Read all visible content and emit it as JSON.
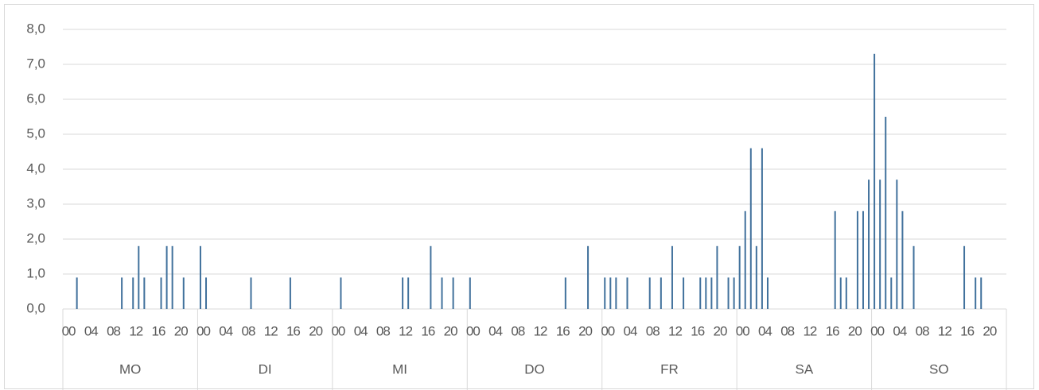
{
  "chart_data": {
    "type": "bar",
    "color": "#41719c",
    "grid": true,
    "ylim": [
      0,
      8
    ],
    "yticks": [
      {
        "value": 0,
        "label": "0,0"
      },
      {
        "value": 1,
        "label": "1,0"
      },
      {
        "value": 2,
        "label": "2,0"
      },
      {
        "value": 3,
        "label": "3,0"
      },
      {
        "value": 4,
        "label": "4,0"
      },
      {
        "value": 5,
        "label": "5,0"
      },
      {
        "value": 6,
        "label": "6,0"
      },
      {
        "value": 7,
        "label": "7,0"
      },
      {
        "value": 8,
        "label": "8,0"
      }
    ],
    "days": [
      "MO",
      "DI",
      "MI",
      "DO",
      "FR",
      "SA",
      "SO"
    ],
    "categories": [
      "00",
      null,
      null,
      null,
      "04",
      null,
      null,
      null,
      "08",
      null,
      null,
      null,
      "12",
      null,
      null,
      null,
      "16",
      null,
      null,
      null,
      "20",
      null,
      null,
      null,
      "00",
      null,
      null,
      null,
      "04",
      null,
      null,
      null,
      "08",
      null,
      null,
      null,
      "12",
      null,
      null,
      null,
      "16",
      null,
      null,
      null,
      "20",
      null,
      null,
      null,
      "00",
      null,
      null,
      null,
      "04",
      null,
      null,
      null,
      "08",
      null,
      null,
      null,
      "12",
      null,
      null,
      null,
      "16",
      null,
      null,
      null,
      "20",
      null,
      null,
      null,
      "00",
      null,
      null,
      null,
      "04",
      null,
      null,
      null,
      "08",
      null,
      null,
      null,
      "12",
      null,
      null,
      null,
      "16",
      null,
      null,
      null,
      "20",
      null,
      null,
      null,
      "00",
      null,
      null,
      null,
      "04",
      null,
      null,
      null,
      "08",
      null,
      null,
      null,
      "12",
      null,
      null,
      null,
      "16",
      null,
      null,
      null,
      "20",
      null,
      null,
      null,
      "00",
      null,
      null,
      null,
      "04",
      null,
      null,
      null,
      "08",
      null,
      null,
      null,
      "12",
      null,
      null,
      null,
      "16",
      null,
      null,
      null,
      "20",
      null,
      null,
      null,
      "00",
      null,
      null,
      null,
      "04",
      null,
      null,
      null,
      "08",
      null,
      null,
      null,
      "12",
      null,
      null,
      null,
      "16",
      null,
      null,
      null,
      "20",
      null,
      null,
      null
    ],
    "values": [
      0,
      0,
      0.9,
      0,
      0,
      0,
      0,
      0,
      0,
      0,
      0.9,
      0,
      0.9,
      1.8,
      0.9,
      0,
      0,
      0.9,
      1.8,
      1.8,
      0,
      0.9,
      0,
      0,
      1.8,
      0.9,
      0,
      0,
      0,
      0,
      0,
      0,
      0,
      0.9,
      0,
      0,
      0,
      0,
      0,
      0,
      0.9,
      0,
      0,
      0,
      0,
      0,
      0,
      0,
      0,
      0.9,
      0,
      0,
      0,
      0,
      0,
      0,
      0,
      0,
      0,
      0,
      0.9,
      0.9,
      0,
      0,
      0,
      1.8,
      0,
      0.9,
      0,
      0.9,
      0,
      0,
      0.9,
      0,
      0,
      0,
      0,
      0,
      0,
      0,
      0,
      0,
      0,
      0,
      0,
      0,
      0,
      0,
      0,
      0.9,
      0,
      0,
      0,
      1.8,
      0,
      0,
      0.9,
      0.9,
      0.9,
      0,
      0.9,
      0,
      0,
      0,
      0.9,
      0,
      0.9,
      0,
      1.8,
      0,
      0.9,
      0,
      0,
      0.9,
      0.9,
      0.9,
      1.8,
      0,
      0.9,
      0.9,
      1.8,
      2.8,
      4.6,
      1.8,
      4.6,
      0.9,
      0,
      0,
      0,
      0,
      0,
      0,
      0,
      0,
      0,
      0,
      0,
      2.8,
      0.9,
      0.9,
      0,
      2.8,
      2.8,
      3.7,
      7.3,
      3.7,
      5.5,
      0.9,
      3.7,
      2.8,
      0,
      1.8,
      0,
      0,
      0,
      0,
      0,
      0,
      0,
      0,
      1.8,
      0,
      0.9,
      0.9,
      0,
      0,
      0,
      0
    ]
  }
}
